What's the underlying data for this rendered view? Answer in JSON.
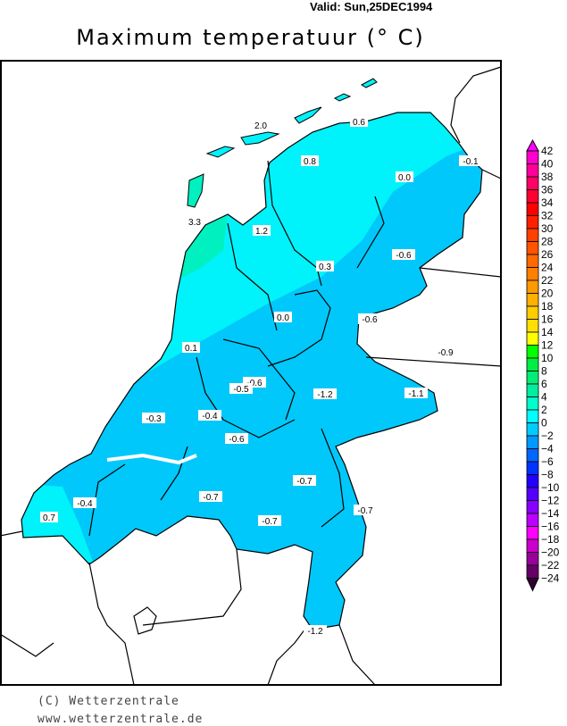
{
  "header": {
    "valid": "Valid:  Sun,25DEC1994",
    "title": "Maximum  temperatuur (° C)"
  },
  "map": {
    "region": "Netherlands",
    "fill_colors": {
      "cyan_0_2": "#00f2fa",
      "blue_m2_0": "#00c8fa",
      "green_2_4": "#00f0c0"
    },
    "station_values": [
      "2.0",
      "0.6",
      "0.8",
      "-0.1",
      "0.0",
      "3.3",
      "1.2",
      "0.3",
      "-0.6",
      "0.0",
      "-0.6",
      "0.1",
      "-0.9",
      "-0.6",
      "-0.5",
      "-1.2",
      "-1.1",
      "-0.3",
      "-0.4",
      "-0.6",
      "-0.7",
      "-0.4",
      "-0.7",
      "0.7",
      "-0.7",
      "-0.7",
      "-1.2"
    ]
  },
  "legend": {
    "ticks": [
      "42",
      "40",
      "38",
      "36",
      "34",
      "32",
      "30",
      "28",
      "26",
      "24",
      "22",
      "20",
      "18",
      "16",
      "14",
      "12",
      "10",
      "8",
      "6",
      "4",
      "2",
      "0",
      "−2",
      "−4",
      "−6",
      "−8",
      "−10",
      "−12",
      "−14",
      "−16",
      "−18",
      "−20",
      "−22",
      "−24"
    ],
    "colors": [
      "#ff00cc",
      "#ff0099",
      "#ff0066",
      "#ff0033",
      "#ff0000",
      "#ff2000",
      "#ff4000",
      "#ff5500",
      "#ff6a00",
      "#ff8000",
      "#ff9900",
      "#ffb000",
      "#ffcc00",
      "#ffe000",
      "#ffff00",
      "#00ff00",
      "#00ee44",
      "#00ee77",
      "#00eea0",
      "#00ffcc",
      "#00ffff",
      "#00ccff",
      "#0099ff",
      "#0066ff",
      "#0033ff",
      "#2200ff",
      "#5500ff",
      "#8800ff",
      "#bb00ff",
      "#ff00ff",
      "#cc00cc",
      "#990099",
      "#660066"
    ],
    "top_arrow_color": "#ff00ff",
    "bottom_arrow_color": "#330033"
  },
  "footer": {
    "copyright": "(C) Wetterzentrale",
    "url": "www.wetterzentrale.de"
  }
}
